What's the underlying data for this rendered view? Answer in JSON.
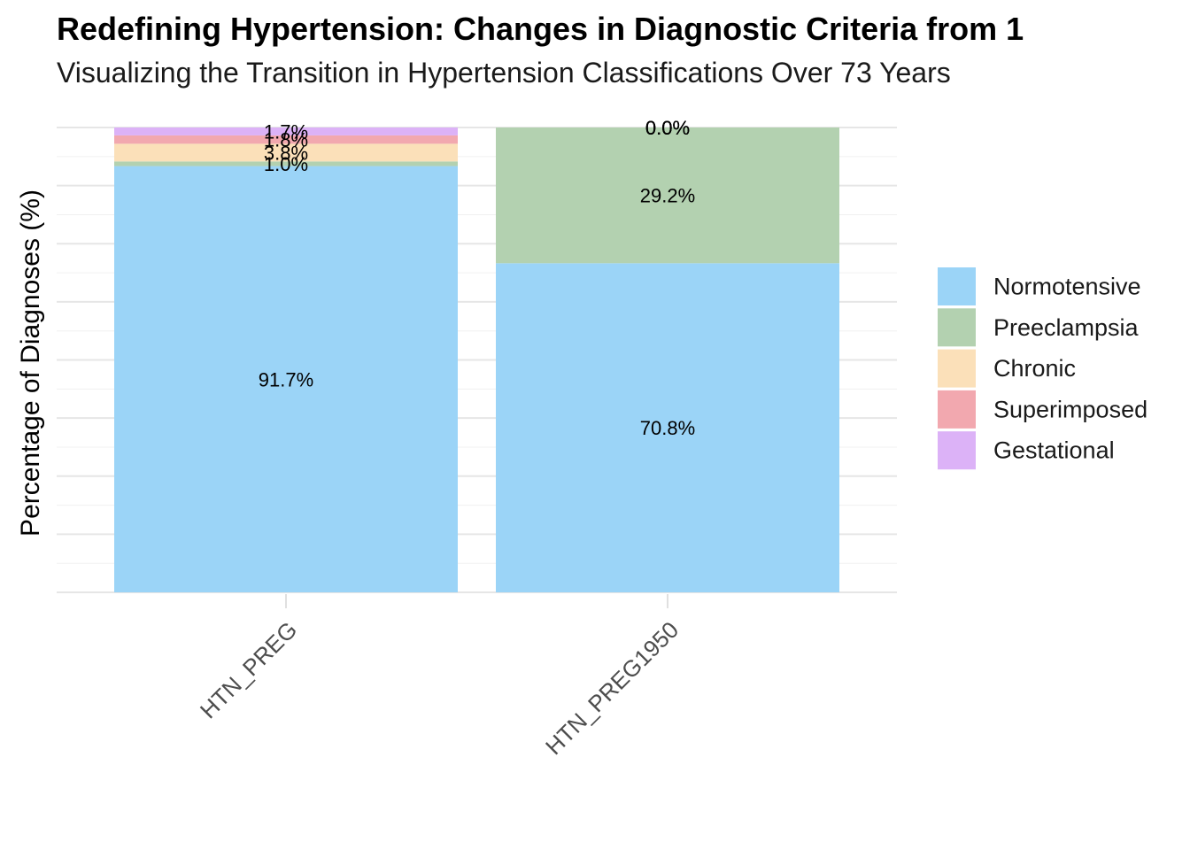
{
  "chart_data": {
    "type": "bar",
    "stacked": true,
    "title": "Redefining Hypertension: Changes in Diagnostic Criteria from 1",
    "subtitle": "Visualizing the Transition in Hypertension Classifications Over 73 Years",
    "ylabel": "Percentage of Diagnoses (%)",
    "xlabel": "",
    "ylim": [
      0,
      100
    ],
    "grid": true,
    "legend_position": "right",
    "categories": [
      "HTN_PREG",
      "HTN_PREG1950"
    ],
    "series": [
      {
        "name": "Normotensive",
        "color": "#9BD4F7",
        "values": [
          91.7,
          70.8
        ],
        "labels": [
          "91.7%",
          "70.8%"
        ]
      },
      {
        "name": "Preeclampsia",
        "color": "#B3D1B0",
        "values": [
          1.0,
          29.2
        ],
        "labels": [
          "1.0%",
          "29.2%"
        ]
      },
      {
        "name": "Chronic",
        "color": "#FBE0B9",
        "values": [
          3.8,
          0.0
        ],
        "labels": [
          "3.8%",
          "0.0%"
        ]
      },
      {
        "name": "Superimposed",
        "color": "#F2A8AF",
        "values": [
          1.8,
          0.0
        ],
        "labels": [
          "1.8%",
          "0.0%"
        ]
      },
      {
        "name": "Gestational",
        "color": "#DCB2F7",
        "values": [
          1.7,
          0.0
        ],
        "labels": [
          "1.7%",
          "0.0%"
        ]
      }
    ]
  }
}
